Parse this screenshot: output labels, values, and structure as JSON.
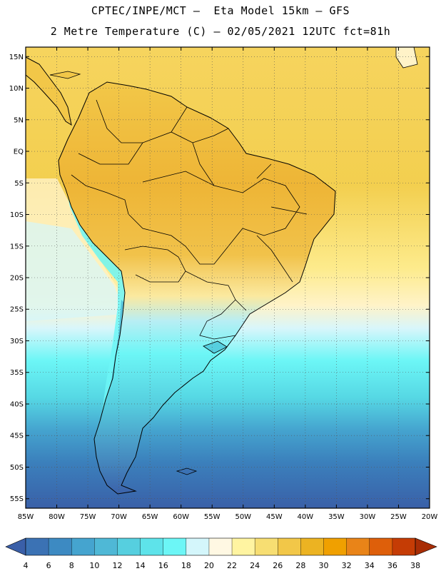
{
  "header": {
    "line1": "CPTEC/INPE/MCT –  Eta Model 15km – GFS",
    "line2": "2 Metre Temperature (C) – 02/05/2021 12UTC fct=81h"
  },
  "map": {
    "lat_labels": [
      "15N",
      "10N",
      "5N",
      "EQ",
      "5S",
      "10S",
      "15S",
      "20S",
      "25S",
      "30S",
      "35S",
      "40S",
      "45S",
      "50S",
      "55S"
    ],
    "lon_labels": [
      "85W",
      "80W",
      "75W",
      "70W",
      "65W",
      "60W",
      "55W",
      "50W",
      "45W",
      "40W",
      "35W",
      "30W",
      "25W",
      "20W"
    ],
    "lon_range": [
      -85,
      -20
    ],
    "lat_range": [
      16.5,
      -56.5
    ],
    "grid": "dotted"
  },
  "colorbar": {
    "labels": [
      "4",
      "6",
      "8",
      "10",
      "12",
      "14",
      "16",
      "18",
      "20",
      "22",
      "24",
      "26",
      "28",
      "30",
      "32",
      "34",
      "36",
      "38"
    ],
    "colors": [
      "#3a5fa8",
      "#3b72b4",
      "#3d8ac2",
      "#45a4cf",
      "#4fb8d6",
      "#56cfdf",
      "#5ee3ea",
      "#6cf6f6",
      "#d4f6fb",
      "#fff8e3",
      "#fff4a1",
      "#f7de72",
      "#f2c748",
      "#ecb322",
      "#f0a000",
      "#e98418",
      "#de5f0a",
      "#c53c05",
      "#a82d05"
    ]
  },
  "colors": {
    "ocean_warm": "#f5d257",
    "ocean_cool": "#5ee3ea",
    "ocean_cold": "#3b72b4",
    "land_hot": "#eca12a",
    "border": "#000000"
  }
}
